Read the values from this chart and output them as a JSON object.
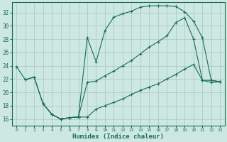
{
  "background_color": "#cce8e0",
  "grid_color": "#aaccC4",
  "line_color": "#1a6b5a",
  "xlabel": "Humidex (Indice chaleur)",
  "ylim": [
    15.0,
    33.5
  ],
  "xlim": [
    -0.5,
    23.5
  ],
  "yticks": [
    16,
    18,
    20,
    22,
    24,
    26,
    28,
    30,
    32
  ],
  "xticks": [
    0,
    1,
    2,
    3,
    4,
    5,
    6,
    7,
    8,
    9,
    10,
    11,
    12,
    13,
    14,
    15,
    16,
    17,
    18,
    19,
    20,
    21,
    22,
    23
  ],
  "curve1_x": [
    0,
    1,
    2,
    3,
    4,
    5,
    6,
    7,
    8,
    9,
    10,
    11,
    12,
    13,
    14,
    15,
    16,
    17,
    18,
    19,
    20,
    21,
    22,
    23
  ],
  "curve1_y": [
    23.9,
    21.9,
    22.3,
    18.3,
    16.7,
    16.0,
    16.2,
    16.3,
    28.2,
    24.6,
    29.3,
    31.3,
    31.8,
    32.2,
    32.8,
    33.0,
    33.0,
    33.0,
    32.9,
    32.1,
    30.7,
    28.2,
    21.8,
    21.6
  ],
  "curve2_x": [
    1,
    2,
    3,
    4,
    5,
    6,
    7,
    8,
    9,
    10,
    11,
    12,
    13,
    14,
    15,
    16,
    17,
    18,
    19,
    20,
    21,
    22,
    23
  ],
  "curve2_y": [
    21.9,
    22.3,
    18.3,
    16.7,
    16.0,
    16.2,
    16.3,
    21.5,
    21.7,
    22.5,
    23.2,
    24.0,
    24.8,
    25.8,
    26.8,
    27.6,
    28.5,
    30.5,
    31.2,
    28.0,
    21.8,
    21.8,
    21.6
  ],
  "curve3_x": [
    3,
    4,
    5,
    6,
    7,
    8,
    9,
    10,
    11,
    12,
    13,
    14,
    15,
    16,
    17,
    18,
    19,
    20,
    21,
    22,
    23
  ],
  "curve3_y": [
    18.3,
    16.7,
    16.0,
    16.2,
    16.3,
    16.3,
    17.5,
    18.0,
    18.5,
    19.0,
    19.7,
    20.3,
    20.8,
    21.3,
    22.0,
    22.7,
    23.5,
    24.2,
    21.8,
    21.5,
    21.6
  ]
}
